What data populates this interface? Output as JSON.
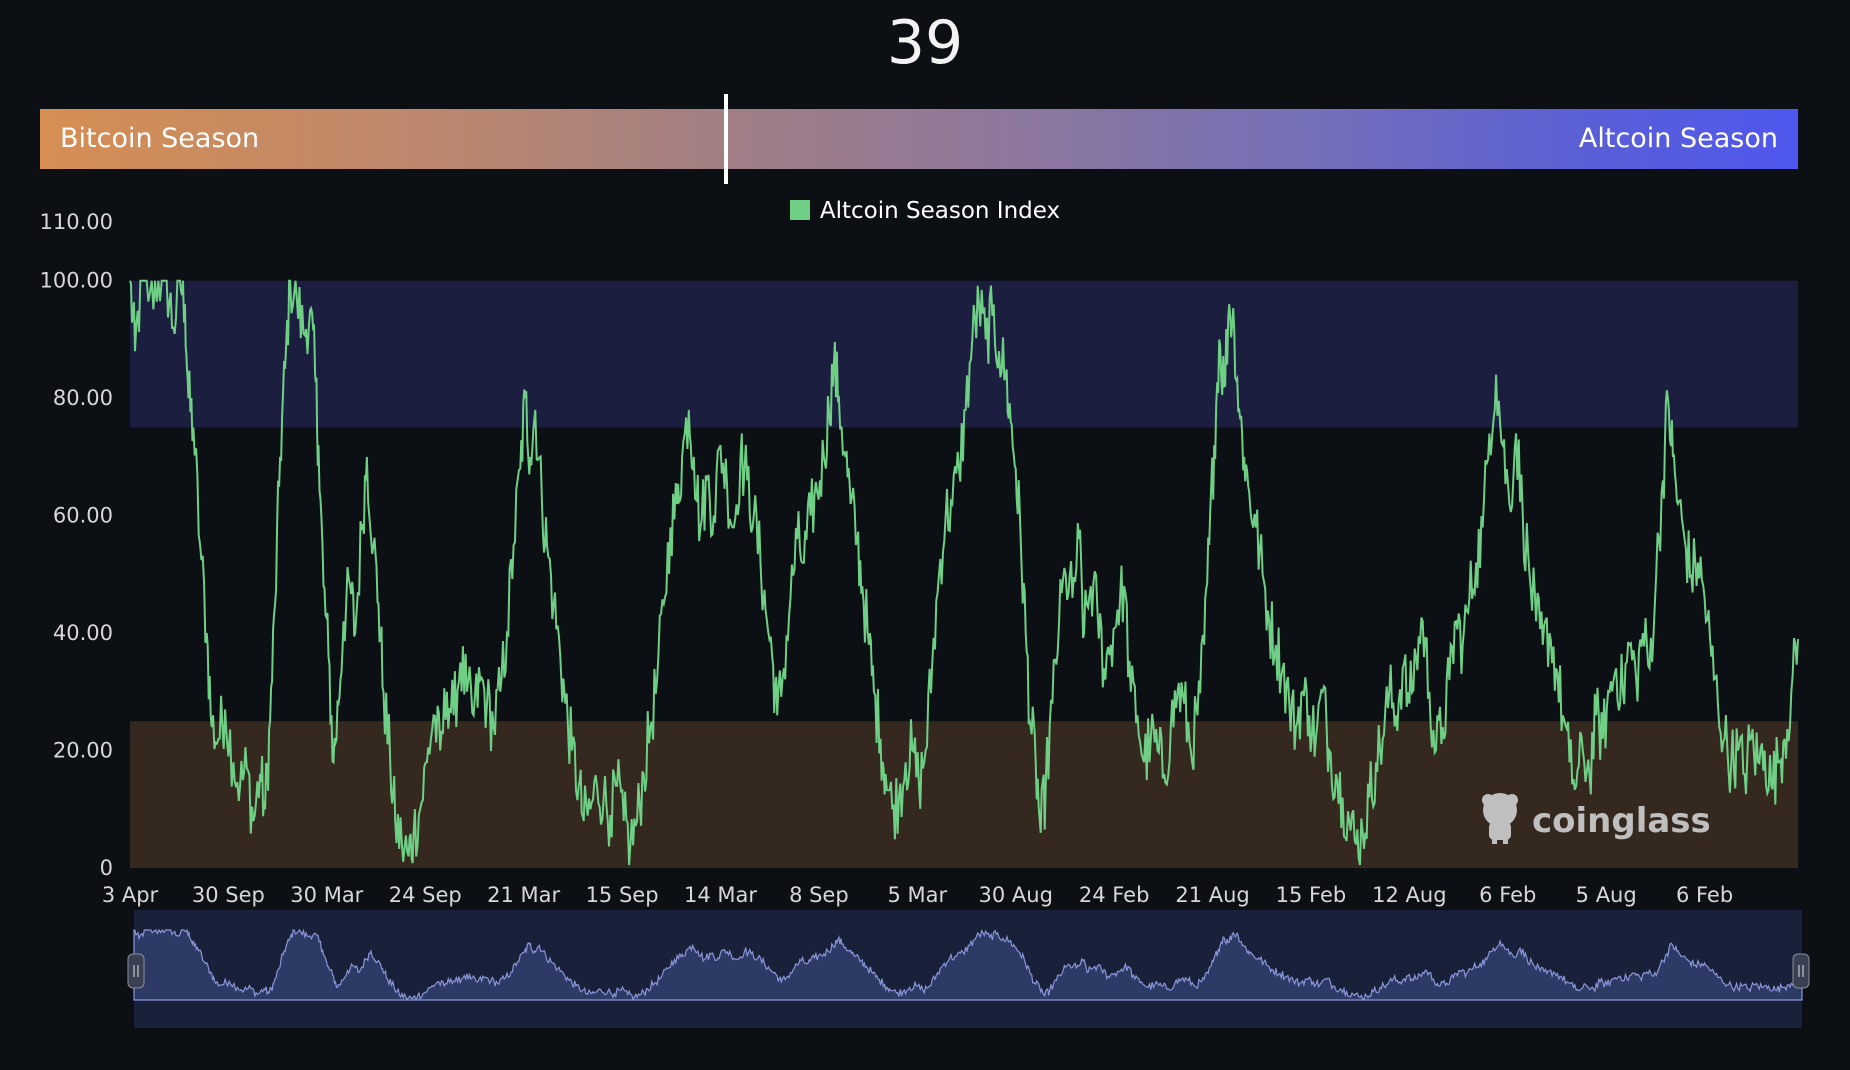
{
  "header": {
    "current_index": "39",
    "current_index_value": 39
  },
  "season_bar": {
    "left_label": "Bitcoin Season",
    "right_label": "Altcoin Season"
  },
  "legend": {
    "label": "Altcoin Season Index",
    "color": "#6fcf85"
  },
  "watermark": {
    "text": "coinglass"
  },
  "chart_data": {
    "type": "line",
    "title": "",
    "xlabel": "",
    "ylabel": "",
    "ylim": [
      0,
      110
    ],
    "yticks": [
      {
        "value": 110,
        "label": "110.00"
      },
      {
        "value": 100,
        "label": "100.00"
      },
      {
        "value": 80,
        "label": "80.00"
      },
      {
        "value": 60,
        "label": "60.00"
      },
      {
        "value": 40,
        "label": "40.00"
      },
      {
        "value": 20,
        "label": "20.00"
      },
      {
        "value": 0,
        "label": "0"
      }
    ],
    "xlim": [
      0,
      100
    ],
    "xticks": [
      {
        "x": 0,
        "label": "3 Apr"
      },
      {
        "x": 5.9,
        "label": "30 Sep"
      },
      {
        "x": 11.8,
        "label": "30 Mar"
      },
      {
        "x": 17.7,
        "label": "24 Sep"
      },
      {
        "x": 23.6,
        "label": "21 Mar"
      },
      {
        "x": 29.5,
        "label": "15 Sep"
      },
      {
        "x": 35.4,
        "label": "14 Mar"
      },
      {
        "x": 41.3,
        "label": "8 Sep"
      },
      {
        "x": 47.2,
        "label": "5 Mar"
      },
      {
        "x": 53.1,
        "label": "30 Aug"
      },
      {
        "x": 59.0,
        "label": "24 Feb"
      },
      {
        "x": 64.9,
        "label": "21 Aug"
      },
      {
        "x": 70.8,
        "label": "15 Feb"
      },
      {
        "x": 76.7,
        "label": "12 Aug"
      },
      {
        "x": 82.6,
        "label": "6 Feb"
      },
      {
        "x": 88.5,
        "label": "5 Aug"
      },
      {
        "x": 94.4,
        "label": "6 Feb"
      }
    ],
    "bands": [
      {
        "name": "altcoin-season-band",
        "from": 75,
        "to": 100,
        "color": "#1b1e3e"
      },
      {
        "name": "bitcoin-season-band",
        "from": 0,
        "to": 25,
        "color": "#35291f"
      }
    ],
    "series": [
      {
        "name": "Altcoin Season Index",
        "color": "#6fcf85",
        "points": [
          [
            0,
            100
          ],
          [
            0.3,
            88
          ],
          [
            0.7,
            100
          ],
          [
            1.2,
            98
          ],
          [
            1.7,
            100
          ],
          [
            2.2,
            100
          ],
          [
            2.6,
            92
          ],
          [
            3.0,
            100
          ],
          [
            3.3,
            96
          ],
          [
            3.5,
            80
          ],
          [
            3.8,
            75
          ],
          [
            4.2,
            55
          ],
          [
            4.6,
            40
          ],
          [
            4.9,
            24
          ],
          [
            5.3,
            22
          ],
          [
            5.7,
            27
          ],
          [
            6.2,
            18
          ],
          [
            6.6,
            14
          ],
          [
            7.0,
            17
          ],
          [
            7.4,
            8
          ],
          [
            7.8,
            16
          ],
          [
            8.1,
            10
          ],
          [
            8.4,
            25
          ],
          [
            8.7,
            45
          ],
          [
            9.0,
            70
          ],
          [
            9.3,
            85
          ],
          [
            9.6,
            100
          ],
          [
            10.0,
            97
          ],
          [
            10.4,
            91
          ],
          [
            10.8,
            95
          ],
          [
            11.1,
            84
          ],
          [
            11.3,
            72
          ],
          [
            11.6,
            48
          ],
          [
            11.9,
            36
          ],
          [
            12.2,
            18
          ],
          [
            12.5,
            28
          ],
          [
            12.8,
            42
          ],
          [
            13.2,
            48
          ],
          [
            13.5,
            40
          ],
          [
            13.9,
            58
          ],
          [
            14.2,
            70
          ],
          [
            14.6,
            55
          ],
          [
            14.9,
            45
          ],
          [
            15.2,
            30
          ],
          [
            15.6,
            18
          ],
          [
            15.9,
            8
          ],
          [
            16.3,
            4
          ],
          [
            16.7,
            2
          ],
          [
            17.0,
            6
          ],
          [
            17.4,
            10
          ],
          [
            17.8,
            18
          ],
          [
            18.2,
            26
          ],
          [
            18.6,
            20
          ],
          [
            19.0,
            30
          ],
          [
            19.4,
            26
          ],
          [
            19.8,
            35
          ],
          [
            20.2,
            30
          ],
          [
            20.6,
            26
          ],
          [
            21.0,
            32
          ],
          [
            21.4,
            28
          ],
          [
            21.8,
            24
          ],
          [
            22.2,
            30
          ],
          [
            22.6,
            40
          ],
          [
            23.0,
            55
          ],
          [
            23.4,
            68
          ],
          [
            23.7,
            80
          ],
          [
            24.0,
            70
          ],
          [
            24.3,
            78
          ],
          [
            24.7,
            62
          ],
          [
            25.0,
            55
          ],
          [
            25.4,
            45
          ],
          [
            25.8,
            36
          ],
          [
            26.1,
            28
          ],
          [
            26.5,
            20
          ],
          [
            26.9,
            14
          ],
          [
            27.2,
            8
          ],
          [
            27.6,
            10
          ],
          [
            28.0,
            14
          ],
          [
            28.4,
            12
          ],
          [
            28.8,
            9
          ],
          [
            29.2,
            14
          ],
          [
            29.6,
            8
          ],
          [
            30.0,
            4
          ],
          [
            30.4,
            8
          ],
          [
            30.8,
            16
          ],
          [
            31.2,
            24
          ],
          [
            31.6,
            32
          ],
          [
            32.0,
            45
          ],
          [
            32.4,
            58
          ],
          [
            32.8,
            62
          ],
          [
            33.1,
            70
          ],
          [
            33.5,
            78
          ],
          [
            33.8,
            70
          ],
          [
            34.2,
            58
          ],
          [
            34.6,
            66
          ],
          [
            35.0,
            60
          ],
          [
            35.4,
            72
          ],
          [
            35.8,
            65
          ],
          [
            36.2,
            58
          ],
          [
            36.6,
            70
          ],
          [
            37.0,
            66
          ],
          [
            37.4,
            60
          ],
          [
            37.8,
            52
          ],
          [
            38.1,
            44
          ],
          [
            38.5,
            36
          ],
          [
            38.8,
            26
          ],
          [
            39.2,
            34
          ],
          [
            39.6,
            46
          ],
          [
            40.0,
            56
          ],
          [
            40.4,
            52
          ],
          [
            40.8,
            60
          ],
          [
            41.2,
            64
          ],
          [
            41.6,
            70
          ],
          [
            41.9,
            78
          ],
          [
            42.2,
            86
          ],
          [
            42.5,
            80
          ],
          [
            42.9,
            70
          ],
          [
            43.2,
            62
          ],
          [
            43.6,
            56
          ],
          [
            43.9,
            48
          ],
          [
            44.3,
            38
          ],
          [
            44.6,
            30
          ],
          [
            45.0,
            22
          ],
          [
            45.3,
            16
          ],
          [
            45.7,
            10
          ],
          [
            46.1,
            12
          ],
          [
            46.5,
            18
          ],
          [
            46.9,
            20
          ],
          [
            47.3,
            14
          ],
          [
            47.7,
            20
          ],
          [
            48.1,
            35
          ],
          [
            48.5,
            50
          ],
          [
            48.9,
            60
          ],
          [
            49.3,
            62
          ],
          [
            49.7,
            68
          ],
          [
            50.1,
            78
          ],
          [
            50.5,
            90
          ],
          [
            50.9,
            96
          ],
          [
            51.3,
            90
          ],
          [
            51.7,
            94
          ],
          [
            52.1,
            88
          ],
          [
            52.5,
            84
          ],
          [
            52.8,
            76
          ],
          [
            53.1,
            68
          ],
          [
            53.4,
            56
          ],
          [
            53.7,
            40
          ],
          [
            54.0,
            24
          ],
          [
            54.3,
            18
          ],
          [
            54.6,
            6
          ],
          [
            54.9,
            14
          ],
          [
            55.3,
            28
          ],
          [
            55.7,
            42
          ],
          [
            56.1,
            50
          ],
          [
            56.5,
            46
          ],
          [
            56.9,
            56
          ],
          [
            57.2,
            40
          ],
          [
            57.6,
            48
          ],
          [
            58.0,
            44
          ],
          [
            58.4,
            34
          ],
          [
            58.8,
            38
          ],
          [
            59.2,
            44
          ],
          [
            59.6,
            48
          ],
          [
            60.0,
            30
          ],
          [
            60.4,
            26
          ],
          [
            60.8,
            18
          ],
          [
            61.2,
            22
          ],
          [
            61.6,
            20
          ],
          [
            62.0,
            16
          ],
          [
            62.4,
            24
          ],
          [
            62.8,
            30
          ],
          [
            63.2,
            28
          ],
          [
            63.6,
            20
          ],
          [
            64.0,
            26
          ],
          [
            64.4,
            38
          ],
          [
            64.7,
            55
          ],
          [
            65.0,
            72
          ],
          [
            65.3,
            90
          ],
          [
            65.6,
            82
          ],
          [
            65.9,
            96
          ],
          [
            66.2,
            92
          ],
          [
            66.5,
            78
          ],
          [
            66.8,
            70
          ],
          [
            67.1,
            64
          ],
          [
            67.5,
            58
          ],
          [
            67.9,
            50
          ],
          [
            68.3,
            42
          ],
          [
            68.7,
            38
          ],
          [
            69.1,
            34
          ],
          [
            69.5,
            28
          ],
          [
            69.9,
            24
          ],
          [
            70.3,
            30
          ],
          [
            70.7,
            26
          ],
          [
            71.1,
            22
          ],
          [
            71.5,
            30
          ],
          [
            71.9,
            20
          ],
          [
            72.3,
            16
          ],
          [
            72.7,
            12
          ],
          [
            73.1,
            8
          ],
          [
            73.5,
            4
          ],
          [
            73.9,
            6
          ],
          [
            74.3,
            12
          ],
          [
            74.7,
            18
          ],
          [
            75.1,
            22
          ],
          [
            75.5,
            30
          ],
          [
            75.9,
            26
          ],
          [
            76.3,
            34
          ],
          [
            76.7,
            28
          ],
          [
            77.1,
            36
          ],
          [
            77.5,
            42
          ],
          [
            77.9,
            30
          ],
          [
            78.3,
            20
          ],
          [
            78.7,
            24
          ],
          [
            79.1,
            32
          ],
          [
            79.5,
            42
          ],
          [
            79.9,
            38
          ],
          [
            80.3,
            46
          ],
          [
            80.7,
            52
          ],
          [
            81.1,
            58
          ],
          [
            81.5,
            74
          ],
          [
            81.9,
            84
          ],
          [
            82.3,
            72
          ],
          [
            82.7,
            62
          ],
          [
            83.1,
            74
          ],
          [
            83.5,
            60
          ],
          [
            83.9,
            50
          ],
          [
            84.3,
            42
          ],
          [
            84.7,
            38
          ],
          [
            85.1,
            40
          ],
          [
            85.5,
            34
          ],
          [
            85.9,
            26
          ],
          [
            86.3,
            18
          ],
          [
            86.7,
            14
          ],
          [
            87.1,
            20
          ],
          [
            87.5,
            16
          ],
          [
            87.9,
            26
          ],
          [
            88.3,
            22
          ],
          [
            88.7,
            30
          ],
          [
            89.1,
            34
          ],
          [
            89.5,
            30
          ],
          [
            89.9,
            38
          ],
          [
            90.3,
            32
          ],
          [
            90.7,
            40
          ],
          [
            91.1,
            34
          ],
          [
            91.5,
            50
          ],
          [
            91.9,
            66
          ],
          [
            92.2,
            80
          ],
          [
            92.5,
            70
          ],
          [
            92.8,
            62
          ],
          [
            93.2,
            56
          ],
          [
            93.6,
            50
          ],
          [
            94.0,
            52
          ],
          [
            94.4,
            46
          ],
          [
            94.8,
            36
          ],
          [
            95.2,
            28
          ],
          [
            95.6,
            22
          ],
          [
            96.0,
            18
          ],
          [
            96.4,
            20
          ],
          [
            96.8,
            16
          ],
          [
            97.2,
            22
          ],
          [
            97.6,
            18
          ],
          [
            98.0,
            20
          ],
          [
            98.4,
            14
          ],
          [
            98.8,
            18
          ],
          [
            99.2,
            22
          ],
          [
            99.6,
            30
          ],
          [
            100,
            39
          ]
        ]
      }
    ]
  }
}
